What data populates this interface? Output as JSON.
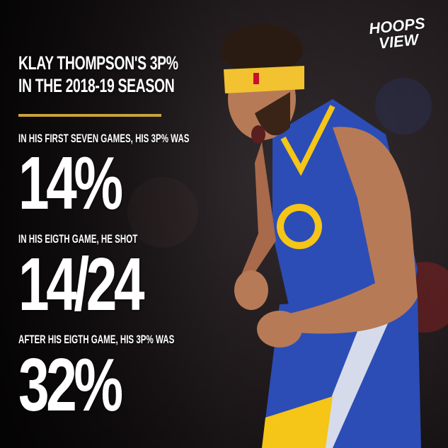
{
  "logo": {
    "text": "HOOPS VIEW"
  },
  "headline": {
    "line1": "KLAY THOMPSON'S 3P%",
    "line2": "IN THE 2018-19 SEASON"
  },
  "stats": [
    {
      "label": "IN HIS FIRST SEVEN GAMES, HIS 3P% WAS",
      "value": "14%"
    },
    {
      "label": "IN HIS EIGTH GAME, HE SHOT",
      "value": "14/24"
    },
    {
      "label": "AFTER HIS EIGTH GAME, HIS 3P% WAS",
      "value": "32%"
    }
  ],
  "colors": {
    "accent": "#c9a23f",
    "jersey": "#2c4db5",
    "trim": "#f5c518",
    "background": "#1a1516"
  }
}
